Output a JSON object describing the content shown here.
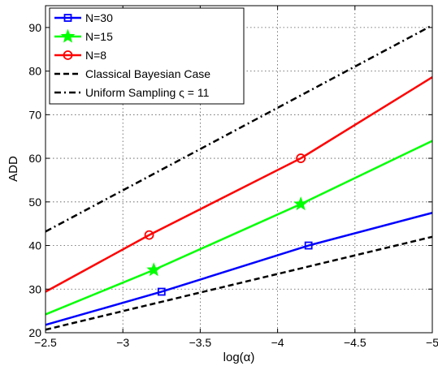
{
  "chart_data": {
    "type": "line",
    "xlabel": "log(α)",
    "ylabel": "ADD",
    "xlim": [
      -2.5,
      -5
    ],
    "ylim": [
      20,
      95
    ],
    "x_reversed": true,
    "grid": true,
    "legend_position": "top-left",
    "x_ticks": [
      {
        "value": -2.5,
        "label": "−2.5"
      },
      {
        "value": -3,
        "label": "−3"
      },
      {
        "value": -3.5,
        "label": "−3.5"
      },
      {
        "value": -4,
        "label": "−4"
      },
      {
        "value": -4.5,
        "label": "−4.5"
      },
      {
        "value": -5,
        "label": "−5"
      }
    ],
    "y_ticks": [
      {
        "value": 20,
        "label": "20"
      },
      {
        "value": 30,
        "label": "30"
      },
      {
        "value": 40,
        "label": "40"
      },
      {
        "value": 50,
        "label": "50"
      },
      {
        "value": 60,
        "label": "60"
      },
      {
        "value": 70,
        "label": "70"
      },
      {
        "value": 80,
        "label": "80"
      },
      {
        "value": 90,
        "label": "90"
      }
    ],
    "series": [
      {
        "name": "N=30",
        "color": "#0000ff",
        "dash": "solid",
        "marker": "square",
        "x": [
          -2.5,
          -3.25,
          -4.2,
          -5
        ],
        "y": [
          21.8,
          29.4,
          40.0,
          47.5
        ],
        "markers": [
          [
            -3.25,
            29.4
          ],
          [
            -4.2,
            40.0
          ]
        ]
      },
      {
        "name": "N=15",
        "color": "#00ff00",
        "dash": "solid",
        "marker": "star",
        "x": [
          -2.5,
          -3.2,
          -4.15,
          -5
        ],
        "y": [
          24.2,
          34.4,
          49.5,
          64.0
        ],
        "markers": [
          [
            -3.2,
            34.4
          ],
          [
            -4.15,
            49.5
          ]
        ]
      },
      {
        "name": "N=8",
        "color": "#ff0000",
        "dash": "solid",
        "marker": "circle",
        "x": [
          -2.5,
          -3.17,
          -4.15,
          -5
        ],
        "y": [
          29.4,
          42.4,
          60.0,
          78.6
        ],
        "markers": [
          [
            -3.17,
            42.4
          ],
          [
            -4.15,
            60.0
          ]
        ]
      },
      {
        "name": "Classical Bayesian Case",
        "color": "#000000",
        "dash": "dashed",
        "marker": "none",
        "x": [
          -2.5,
          -5
        ],
        "y": [
          20.7,
          42.0
        ],
        "markers": []
      },
      {
        "name": "Uniform Sampling ς = 11",
        "color": "#000000",
        "dash": "dashdot",
        "marker": "none",
        "x": [
          -2.5,
          -5
        ],
        "y": [
          43.2,
          90.5
        ],
        "markers": []
      }
    ]
  }
}
